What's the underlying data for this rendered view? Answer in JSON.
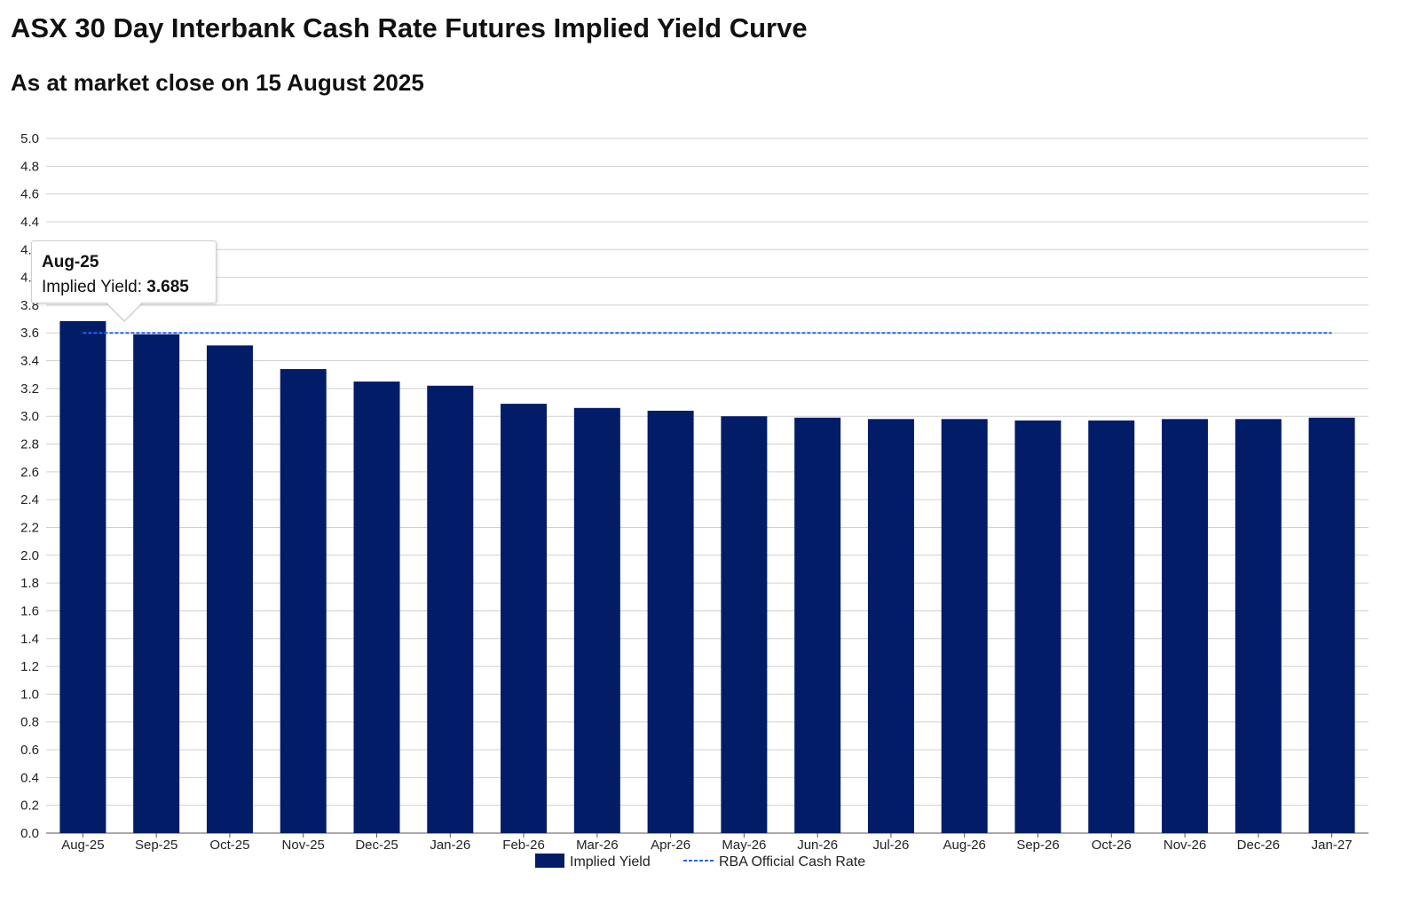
{
  "page": {
    "title": "ASX 30 Day Interbank Cash Rate Futures Implied Yield Curve",
    "subtitle": "As at market close on 15 August 2025"
  },
  "colors": {
    "bar": "#031c68",
    "reference_line": "#2563eb",
    "grid": "#d0d0d0",
    "axis": "#555555"
  },
  "tooltip": {
    "title": "Aug-25",
    "label": "Implied Yield:",
    "value": "3.685"
  },
  "chart_data": {
    "type": "bar",
    "title": "ASX 30 Day Interbank Cash Rate Futures Implied Yield Curve",
    "subtitle": "As at market close on 15 August 2025",
    "xlabel": "",
    "ylabel": "",
    "ylim": [
      0,
      5
    ],
    "y_ticks": [
      "0.0",
      "0.2",
      "0.4",
      "0.6",
      "0.8",
      "1.0",
      "1.2",
      "1.4",
      "1.6",
      "1.8",
      "2.0",
      "2.2",
      "2.4",
      "2.6",
      "2.8",
      "3.0",
      "3.2",
      "3.4",
      "3.6",
      "3.8",
      "4.0",
      "4.2",
      "4.4",
      "4.6",
      "4.8",
      "5.0"
    ],
    "grid": true,
    "legend_position": "bottom",
    "categories": [
      "Aug-25",
      "Sep-25",
      "Oct-25",
      "Nov-25",
      "Dec-25",
      "Jan-26",
      "Feb-26",
      "Mar-26",
      "Apr-26",
      "May-26",
      "Jun-26",
      "Jul-26",
      "Aug-26",
      "Sep-26",
      "Oct-26",
      "Nov-26",
      "Dec-26",
      "Jan-27"
    ],
    "series": [
      {
        "name": "Implied Yield",
        "type": "bar",
        "values": [
          3.685,
          3.59,
          3.51,
          3.34,
          3.25,
          3.22,
          3.09,
          3.06,
          3.04,
          3.0,
          2.99,
          2.98,
          2.98,
          2.97,
          2.97,
          2.98,
          2.98,
          2.99
        ]
      },
      {
        "name": "RBA Official Cash Rate",
        "type": "line",
        "style": "dashed",
        "values": [
          3.6,
          3.6,
          3.6,
          3.6,
          3.6,
          3.6,
          3.6,
          3.6,
          3.6,
          3.6,
          3.6,
          3.6,
          3.6,
          3.6,
          3.6,
          3.6,
          3.6,
          3.6
        ]
      }
    ],
    "legend": [
      "Implied Yield",
      "RBA Official Cash Rate"
    ],
    "highlighted_category": "Aug-25"
  }
}
